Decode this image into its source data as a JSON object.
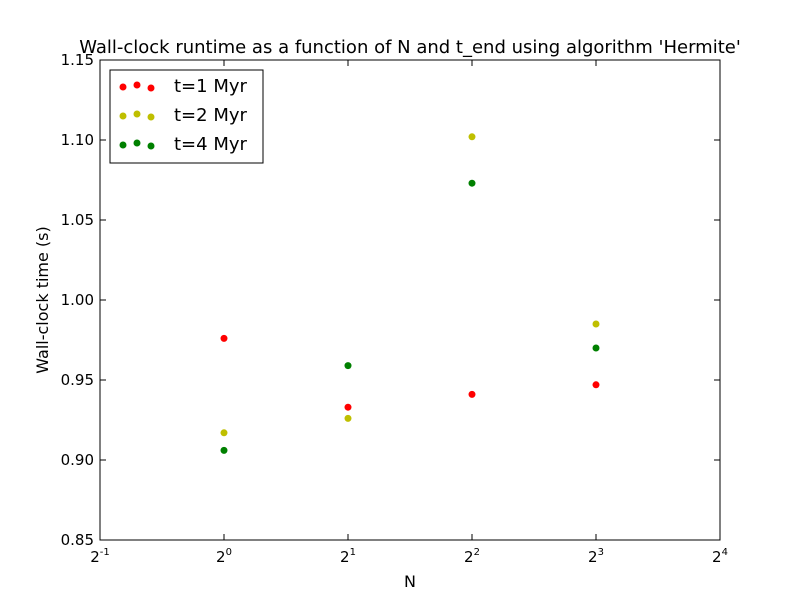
{
  "chart_data": {
    "type": "scatter",
    "title": "Wall-clock runtime as a function of N and t_end using algorithm 'Hermite'",
    "xlabel": "N",
    "ylabel": "Wall-clock time (s)",
    "xscale": "log2",
    "xlim": [
      0.5,
      16
    ],
    "ylim": [
      0.85,
      1.15
    ],
    "x_ticks": [
      {
        "value": 0.5,
        "base": "2",
        "exp": "-1"
      },
      {
        "value": 1,
        "base": "2",
        "exp": "0"
      },
      {
        "value": 2,
        "base": "2",
        "exp": "1"
      },
      {
        "value": 4,
        "base": "2",
        "exp": "2"
      },
      {
        "value": 8,
        "base": "2",
        "exp": "3"
      },
      {
        "value": 16,
        "base": "2",
        "exp": "4"
      }
    ],
    "y_ticks": [
      {
        "value": 0.85,
        "label": "0.85"
      },
      {
        "value": 0.9,
        "label": "0.90"
      },
      {
        "value": 0.95,
        "label": "0.95"
      },
      {
        "value": 1.0,
        "label": "1.00"
      },
      {
        "value": 1.05,
        "label": "1.05"
      },
      {
        "value": 1.1,
        "label": "1.10"
      },
      {
        "value": 1.15,
        "label": "1.15"
      }
    ],
    "grid": false,
    "legend_position": "top-left",
    "series": [
      {
        "name": "t=1 Myr",
        "color": "#ff0000",
        "x": [
          1,
          2,
          4,
          8
        ],
        "y": [
          0.976,
          0.933,
          0.941,
          0.947
        ]
      },
      {
        "name": "t=2 Myr",
        "color": "#bfbf00",
        "x": [
          1,
          2,
          4,
          8
        ],
        "y": [
          0.917,
          0.926,
          1.102,
          0.985
        ]
      },
      {
        "name": "t=4 Myr",
        "color": "#008000",
        "x": [
          1,
          2,
          4,
          8
        ],
        "y": [
          0.906,
          0.959,
          1.073,
          0.97
        ]
      }
    ]
  }
}
